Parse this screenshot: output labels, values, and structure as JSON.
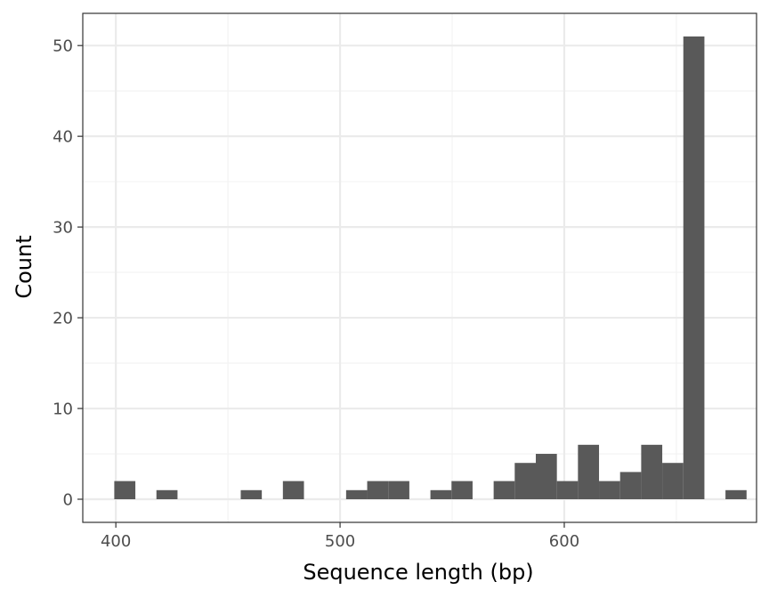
{
  "chart_data": {
    "type": "bar",
    "subtype": "histogram",
    "title": "",
    "xlabel": "Sequence length (bp)",
    "ylabel": "Count",
    "xlim": [
      385.25,
      685.75
    ],
    "ylim": [
      -2.55,
      53.55
    ],
    "x_ticks": [
      400,
      500,
      600
    ],
    "y_ticks": [
      0,
      10,
      20,
      30,
      40,
      50
    ],
    "bin_width": 9.4,
    "bins": [
      {
        "center": 404.0,
        "count": 2
      },
      {
        "center": 422.8,
        "count": 1
      },
      {
        "center": 460.4,
        "count": 1
      },
      {
        "center": 479.2,
        "count": 2
      },
      {
        "center": 507.4,
        "count": 1
      },
      {
        "center": 516.8,
        "count": 2
      },
      {
        "center": 526.2,
        "count": 2
      },
      {
        "center": 545.0,
        "count": 1
      },
      {
        "center": 554.4,
        "count": 2
      },
      {
        "center": 573.2,
        "count": 2
      },
      {
        "center": 582.6,
        "count": 4
      },
      {
        "center": 592.0,
        "count": 5
      },
      {
        "center": 601.4,
        "count": 2
      },
      {
        "center": 610.8,
        "count": 6
      },
      {
        "center": 620.2,
        "count": 2
      },
      {
        "center": 629.6,
        "count": 3
      },
      {
        "center": 639.0,
        "count": 6
      },
      {
        "center": 648.4,
        "count": 4
      },
      {
        "center": 657.8,
        "count": 51
      },
      {
        "center": 676.6,
        "count": 1
      }
    ],
    "bar_color": "#595959",
    "panel_border_color": "#333333",
    "grid_major_color": "#ebebeb",
    "grid_minor_color": "#f2f2f2",
    "grid": true,
    "legend": "none"
  }
}
